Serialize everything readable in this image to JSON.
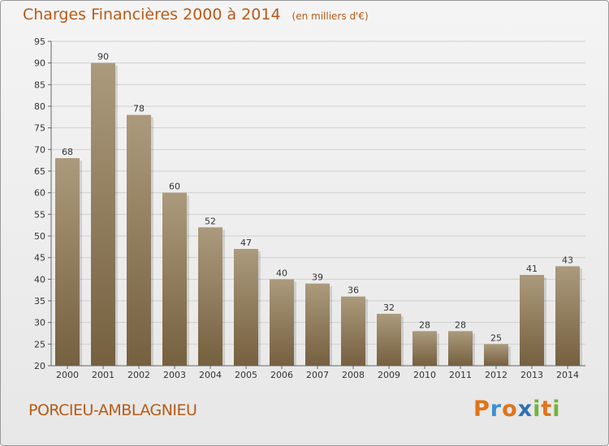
{
  "title": "Charges Financières 2000 à 2014",
  "unit_note": "(en milliers d'€)",
  "place_name": "PORCIEU-AMBLAGNIEU",
  "logo": {
    "text": "Proxiti",
    "letters": [
      {
        "ch": "P",
        "color": "#e0731a"
      },
      {
        "ch": "r",
        "color": "#3f8fd0"
      },
      {
        "ch": "o",
        "color": "#e0731a"
      },
      {
        "ch": "x",
        "color": "#2d6fb5"
      },
      {
        "ch": "i",
        "color": "#74b43a"
      },
      {
        "ch": "t",
        "color": "#e0731a"
      },
      {
        "ch": "i",
        "color": "#74b43a"
      }
    ]
  },
  "colors": {
    "title": "#b85a17",
    "bar_top": "#ab9a7c",
    "bar_bottom": "#75603f"
  },
  "chart_data": {
    "type": "bar",
    "categories": [
      "2000",
      "2001",
      "2002",
      "2003",
      "2004",
      "2005",
      "2006",
      "2007",
      "2008",
      "2009",
      "2010",
      "2011",
      "2012",
      "2013",
      "2014"
    ],
    "values": [
      68,
      90,
      78,
      60,
      52,
      47,
      40,
      39,
      36,
      32,
      28,
      28,
      25,
      41,
      43
    ],
    "ylim": [
      20,
      95
    ],
    "yticks": [
      20,
      25,
      30,
      35,
      40,
      45,
      50,
      55,
      60,
      65,
      70,
      75,
      80,
      85,
      90,
      95
    ],
    "grid": true
  }
}
